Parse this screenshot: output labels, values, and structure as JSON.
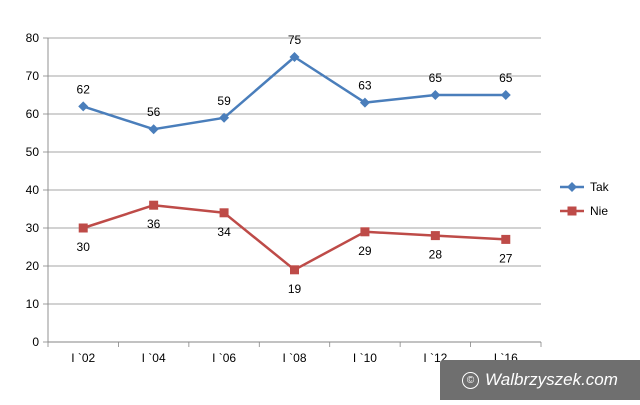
{
  "chart_data": {
    "type": "line",
    "categories": [
      "I `02",
      "I `04",
      "I `06",
      "I `08",
      "I `10",
      "I `12",
      "I `16"
    ],
    "ylim": [
      0,
      80
    ],
    "yticks": [
      0,
      10,
      20,
      30,
      40,
      50,
      60,
      70,
      80
    ],
    "grid": true,
    "legend_position": "right",
    "series": [
      {
        "name": "Tak",
        "values": [
          62,
          56,
          59,
          75,
          63,
          65,
          65
        ],
        "color": "#4a7ebb",
        "marker": "diamond",
        "label_position": "above"
      },
      {
        "name": "Nie",
        "values": [
          30,
          36,
          34,
          19,
          29,
          28,
          27
        ],
        "color": "#be4b48",
        "marker": "square",
        "label_position": "below"
      }
    ]
  },
  "watermark": {
    "text": "Walbrzyszek.com",
    "icon": "copyright-icon",
    "symbol": "©"
  }
}
